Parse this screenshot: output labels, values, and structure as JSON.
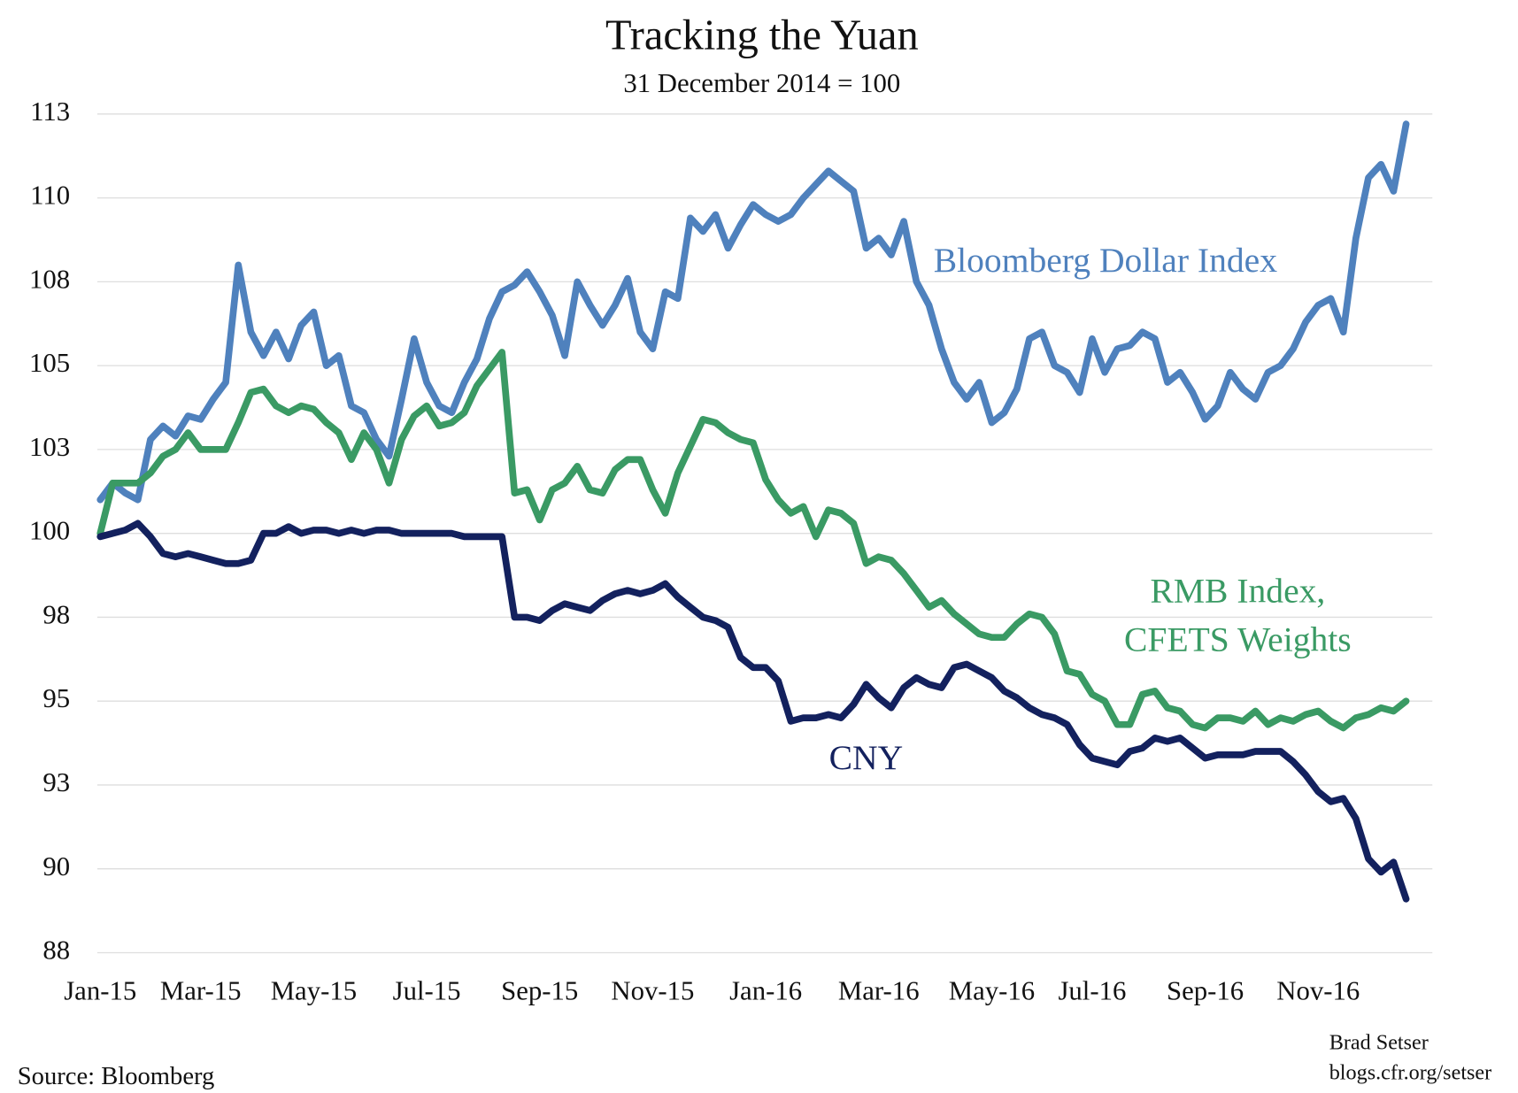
{
  "chart_data": {
    "type": "line",
    "title": "Tracking the Yuan",
    "subtitle": "31 December 2014 = 100",
    "source": "Source: Bloomberg",
    "credit": [
      "Brad Setser",
      "blogs.cfr.org/setser"
    ],
    "ylim": [
      87.5,
      112.5
    ],
    "yticks": [
      {
        "value": 87.5,
        "label": "88"
      },
      90,
      {
        "value": 92.5,
        "label": "93"
      },
      95,
      {
        "value": 97.5,
        "label": "98"
      },
      100,
      {
        "value": 102.5,
        "label": "103"
      },
      105,
      {
        "value": 107.5,
        "label": "108"
      },
      110,
      {
        "value": 112.5,
        "label": "113"
      }
    ],
    "grid": true,
    "categories": [
      "Jan-15",
      null,
      null,
      null,
      null,
      null,
      null,
      null,
      "Mar-15",
      null,
      null,
      null,
      null,
      null,
      null,
      null,
      null,
      "May-15",
      null,
      null,
      null,
      null,
      null,
      null,
      null,
      null,
      "Jul-15",
      null,
      null,
      null,
      null,
      null,
      null,
      null,
      null,
      "Sep-15",
      null,
      null,
      null,
      null,
      null,
      null,
      null,
      null,
      "Nov-15",
      null,
      null,
      null,
      null,
      null,
      null,
      null,
      null,
      "Jan-16",
      null,
      null,
      null,
      null,
      null,
      null,
      null,
      null,
      "Mar-16",
      null,
      null,
      null,
      null,
      null,
      null,
      null,
      null,
      "May-16",
      null,
      null,
      null,
      null,
      null,
      null,
      null,
      "Jul-16",
      null,
      null,
      null,
      null,
      null,
      null,
      null,
      null,
      "Sep-16",
      null,
      null,
      null,
      null,
      null,
      null,
      null,
      null,
      "Nov-16",
      null,
      null,
      null,
      null,
      null,
      null,
      null
    ],
    "series": [
      {
        "name": "Bloomberg Dollar Index",
        "color": "#4f81bd",
        "values": [
          101.0,
          101.5,
          101.2,
          101.0,
          102.8,
          103.2,
          102.9,
          103.5,
          103.4,
          104.0,
          104.5,
          108.0,
          106.0,
          105.3,
          106.0,
          105.2,
          106.2,
          106.6,
          105.0,
          105.3,
          103.8,
          103.6,
          102.8,
          102.3,
          104.0,
          105.8,
          104.5,
          103.8,
          103.6,
          104.5,
          105.2,
          106.4,
          107.2,
          107.4,
          107.8,
          107.2,
          106.5,
          105.3,
          107.5,
          106.8,
          106.2,
          106.8,
          107.6,
          106.0,
          105.5,
          107.2,
          107.0,
          109.4,
          109.0,
          109.5,
          108.5,
          109.2,
          109.8,
          109.5,
          109.3,
          109.5,
          110.0,
          110.4,
          110.8,
          110.5,
          110.2,
          108.5,
          108.8,
          108.3,
          109.3,
          107.5,
          106.8,
          105.5,
          104.5,
          104.0,
          104.5,
          103.3,
          103.6,
          104.3,
          105.8,
          106.0,
          105.0,
          104.8,
          104.2,
          105.8,
          104.8,
          105.5,
          105.6,
          106.0,
          105.8,
          104.5,
          104.8,
          104.2,
          103.4,
          103.8,
          104.8,
          104.3,
          104.0,
          104.8,
          105.0,
          105.5,
          106.3,
          106.8,
          107.0,
          106.0,
          108.8,
          110.6,
          111.0,
          110.2,
          112.2
        ]
      },
      {
        "name": "RMB Index, CFETS Weights",
        "color": "#3a9a64",
        "values": [
          100.0,
          101.5,
          101.5,
          101.5,
          101.8,
          102.3,
          102.5,
          103.0,
          102.5,
          102.5,
          102.5,
          103.3,
          104.2,
          104.3,
          103.8,
          103.6,
          103.8,
          103.7,
          103.3,
          103.0,
          102.2,
          103.0,
          102.5,
          101.5,
          102.8,
          103.5,
          103.8,
          103.2,
          103.3,
          103.6,
          104.4,
          104.9,
          105.4,
          101.2,
          101.3,
          100.4,
          101.3,
          101.5,
          102.0,
          101.3,
          101.2,
          101.9,
          102.2,
          102.2,
          101.3,
          100.6,
          101.8,
          102.6,
          103.4,
          103.3,
          103.0,
          102.8,
          102.7,
          101.6,
          101.0,
          100.6,
          100.8,
          99.9,
          100.7,
          100.6,
          100.3,
          99.1,
          99.3,
          99.2,
          98.8,
          98.3,
          97.8,
          98.0,
          97.6,
          97.3,
          97.0,
          96.9,
          96.9,
          97.3,
          97.6,
          97.5,
          97.0,
          95.9,
          95.8,
          95.2,
          95.0,
          94.3,
          94.3,
          95.2,
          95.3,
          94.8,
          94.7,
          94.3,
          94.2,
          94.5,
          94.5,
          94.4,
          94.7,
          94.3,
          94.5,
          94.4,
          94.6,
          94.7,
          94.4,
          94.2,
          94.5,
          94.6,
          94.8,
          94.7,
          95.0
        ]
      },
      {
        "name": "CNY",
        "color": "#13215e",
        "values": [
          99.9,
          100.0,
          100.1,
          100.3,
          99.9,
          99.4,
          99.3,
          99.4,
          99.3,
          99.2,
          99.1,
          99.1,
          99.2,
          100.0,
          100.0,
          100.2,
          100.0,
          100.1,
          100.1,
          100.0,
          100.1,
          100.0,
          100.1,
          100.1,
          100.0,
          100.0,
          100.0,
          100.0,
          100.0,
          99.9,
          99.9,
          99.9,
          99.9,
          97.5,
          97.5,
          97.4,
          97.7,
          97.9,
          97.8,
          97.7,
          98.0,
          98.2,
          98.3,
          98.2,
          98.3,
          98.5,
          98.1,
          97.8,
          97.5,
          97.4,
          97.2,
          96.3,
          96.0,
          96.0,
          95.6,
          94.4,
          94.5,
          94.5,
          94.6,
          94.5,
          94.9,
          95.5,
          95.1,
          94.8,
          95.4,
          95.7,
          95.5,
          95.4,
          96.0,
          96.1,
          95.9,
          95.7,
          95.3,
          95.1,
          94.8,
          94.6,
          94.5,
          94.3,
          93.7,
          93.3,
          93.2,
          93.1,
          93.5,
          93.6,
          93.9,
          93.8,
          93.9,
          93.6,
          93.3,
          93.4,
          93.4,
          93.4,
          93.5,
          93.5,
          93.5,
          93.2,
          92.8,
          92.3,
          92.0,
          92.1,
          91.5,
          90.3,
          89.9,
          90.2,
          89.1
        ]
      }
    ]
  }
}
